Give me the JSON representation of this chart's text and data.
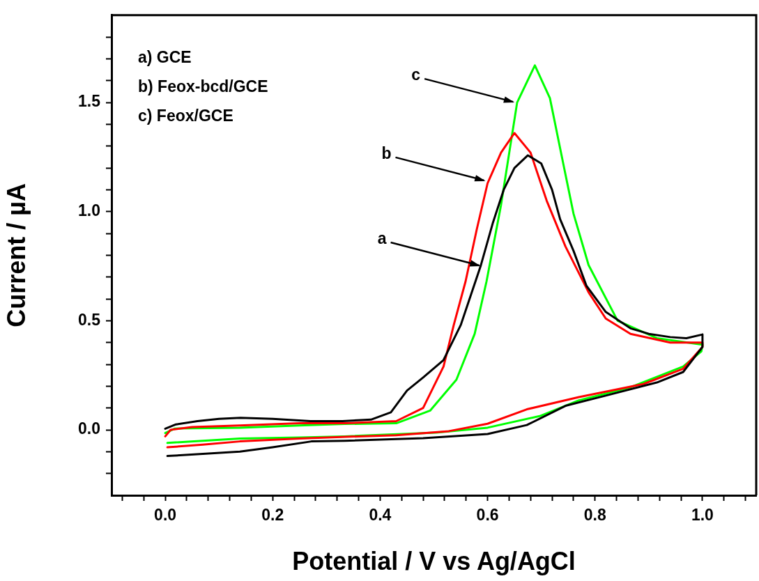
{
  "chart_data": {
    "type": "line",
    "xlabel": "Potential / V vs Ag/AgCl",
    "ylabel": "Current / µA",
    "xlim": [
      -0.1,
      1.1
    ],
    "ylim": [
      -0.3,
      1.9
    ],
    "xticks": [
      {
        "value": -0.08,
        "label": null
      },
      {
        "value": -0.04,
        "label": null
      },
      {
        "value": 0,
        "label": "0.0"
      },
      {
        "value": 0.04,
        "label": null
      },
      {
        "value": 0.08,
        "label": null
      },
      {
        "value": 0.12,
        "label": null
      },
      {
        "value": 0.16,
        "label": null
      },
      {
        "value": 0.2,
        "label": "0.2"
      },
      {
        "value": 0.24,
        "label": null
      },
      {
        "value": 0.28,
        "label": null
      },
      {
        "value": 0.32,
        "label": null
      },
      {
        "value": 0.36,
        "label": null
      },
      {
        "value": 0.4,
        "label": "0.4"
      },
      {
        "value": 0.44,
        "label": null
      },
      {
        "value": 0.48,
        "label": null
      },
      {
        "value": 0.52,
        "label": null
      },
      {
        "value": 0.56,
        "label": null
      },
      {
        "value": 0.6,
        "label": "0.6"
      },
      {
        "value": 0.64,
        "label": null
      },
      {
        "value": 0.68,
        "label": null
      },
      {
        "value": 0.72,
        "label": null
      },
      {
        "value": 0.76,
        "label": null
      },
      {
        "value": 0.8,
        "label": "0.8"
      },
      {
        "value": 0.84,
        "label": null
      },
      {
        "value": 0.88,
        "label": null
      },
      {
        "value": 0.92,
        "label": null
      },
      {
        "value": 0.96,
        "label": null
      },
      {
        "value": 1,
        "label": "1.0"
      },
      {
        "value": 1.04,
        "label": null
      },
      {
        "value": 1.08,
        "label": null
      }
    ],
    "yticks": [
      {
        "value": -0.2,
        "label": null
      },
      {
        "value": -0.1,
        "label": null
      },
      {
        "value": 0,
        "label": "0.0"
      },
      {
        "value": 0.1,
        "label": null
      },
      {
        "value": 0.2,
        "label": null
      },
      {
        "value": 0.3,
        "label": null
      },
      {
        "value": 0.4,
        "label": null
      },
      {
        "value": 0.5,
        "label": "0.5"
      },
      {
        "value": 0.6,
        "label": null
      },
      {
        "value": 0.7,
        "label": null
      },
      {
        "value": 0.8,
        "label": null
      },
      {
        "value": 0.9,
        "label": null
      },
      {
        "value": 1,
        "label": "1.0"
      },
      {
        "value": 1.1,
        "label": null
      },
      {
        "value": 1.2,
        "label": null
      },
      {
        "value": 1.3,
        "label": null
      },
      {
        "value": 1.4,
        "label": null
      },
      {
        "value": 1.5,
        "label": "1.5"
      },
      {
        "value": 1.6,
        "label": null
      },
      {
        "value": 1.7,
        "label": null
      },
      {
        "value": 1.8,
        "label": null
      }
    ],
    "grid": false,
    "legend": false,
    "marker": "none",
    "line_style": "solid",
    "annotations": [
      "a) GCE",
      "b) Feox-bcd/GCE",
      "c) Feox/GCE",
      {
        "text": "a",
        "x": 0.587,
        "y": 0.75
      },
      {
        "text": "b",
        "x": 0.596,
        "y": 1.14
      },
      {
        "text": "c",
        "x": 0.65,
        "y": 1.5
      }
    ],
    "series": [
      {
        "color": "#000000",
        "x": [
          0,
          0.02,
          0.06,
          0.1,
          0.14,
          0.2,
          0.27,
          0.33,
          0.383,
          0.42,
          0.45,
          0.48,
          0.518,
          0.55,
          0.587,
          0.61,
          0.63,
          0.65,
          0.675,
          0.7,
          0.72,
          0.735,
          0.76,
          0.784,
          0.82,
          0.866,
          0.9,
          0.94,
          0.97,
          1.0,
          1.0,
          0.964,
          0.915,
          0.82,
          0.745,
          0.673,
          0.6,
          0.48,
          0.334,
          0.272,
          0.2,
          0.139,
          0.07,
          0.004
        ],
        "values": [
          0.005,
          0.025,
          0.04,
          0.05,
          0.055,
          0.05,
          0.04,
          0.04,
          0.047,
          0.08,
          0.18,
          0.24,
          0.32,
          0.48,
          0.75,
          0.95,
          1.1,
          1.2,
          1.258,
          1.22,
          1.1,
          0.965,
          0.82,
          0.66,
          0.54,
          0.465,
          0.44,
          0.425,
          0.42,
          0.437,
          0.38,
          0.265,
          0.217,
          0.157,
          0.11,
          0.022,
          -0.019,
          -0.038,
          -0.05,
          -0.053,
          -0.08,
          -0.1,
          -0.11,
          -0.12
        ]
      },
      {
        "color": "#ff0000",
        "x": [
          0,
          0.01,
          0.05,
          0.139,
          0.25,
          0.334,
          0.43,
          0.48,
          0.518,
          0.537,
          0.559,
          0.58,
          0.6,
          0.625,
          0.65,
          0.68,
          0.71,
          0.745,
          0.788,
          0.82,
          0.866,
          0.94,
          1.0,
          1.0,
          0.964,
          0.89,
          0.77,
          0.673,
          0.6,
          0.528,
          0.43,
          0.36,
          0.25,
          0.139,
          0.07,
          0.004
        ],
        "values": [
          -0.03,
          0.0,
          0.013,
          0.02,
          0.03,
          0.03,
          0.04,
          0.1,
          0.29,
          0.48,
          0.68,
          0.92,
          1.13,
          1.27,
          1.36,
          1.27,
          1.05,
          0.84,
          0.63,
          0.51,
          0.44,
          0.4,
          0.4,
          0.38,
          0.28,
          0.21,
          0.15,
          0.094,
          0.028,
          -0.006,
          -0.025,
          -0.03,
          -0.04,
          -0.053,
          -0.068,
          -0.08
        ]
      },
      {
        "color": "#00ff00",
        "x": [
          0,
          0.018,
          0.139,
          0.25,
          0.334,
          0.43,
          0.493,
          0.542,
          0.576,
          0.598,
          0.625,
          0.655,
          0.688,
          0.716,
          0.74,
          0.76,
          0.788,
          0.842,
          0.915,
          1.0,
          0.998,
          0.964,
          0.866,
          0.77,
          0.697,
          0.6,
          0.504,
          0.334,
          0.25,
          0.139,
          0.004
        ],
        "values": [
          -0.015,
          0.006,
          0.01,
          0.02,
          0.027,
          0.03,
          0.088,
          0.23,
          0.44,
          0.68,
          1.03,
          1.5,
          1.67,
          1.52,
          1.23,
          0.99,
          0.755,
          0.5,
          0.42,
          0.39,
          0.36,
          0.29,
          0.195,
          0.135,
          0.063,
          0.01,
          -0.013,
          -0.03,
          -0.035,
          -0.04,
          -0.06
        ]
      }
    ]
  }
}
